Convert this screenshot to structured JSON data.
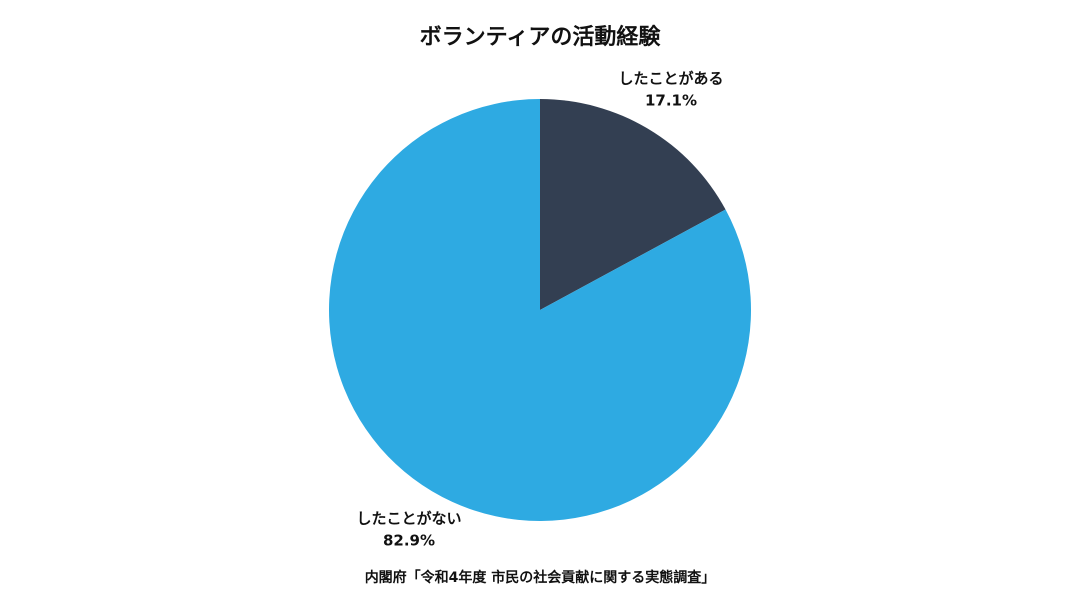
{
  "chart_data": {
    "type": "pie",
    "title": "ボランティアの活動経験",
    "categories": [
      "したことがある",
      "したことがない"
    ],
    "values": [
      17.1,
      82.9
    ],
    "value_labels": [
      "17.1%",
      "82.9%"
    ],
    "colors": [
      "#333f52",
      "#2eaae2"
    ],
    "source": "内閣府「令和4年度 市民の社会貢献に関する実態調査」"
  }
}
